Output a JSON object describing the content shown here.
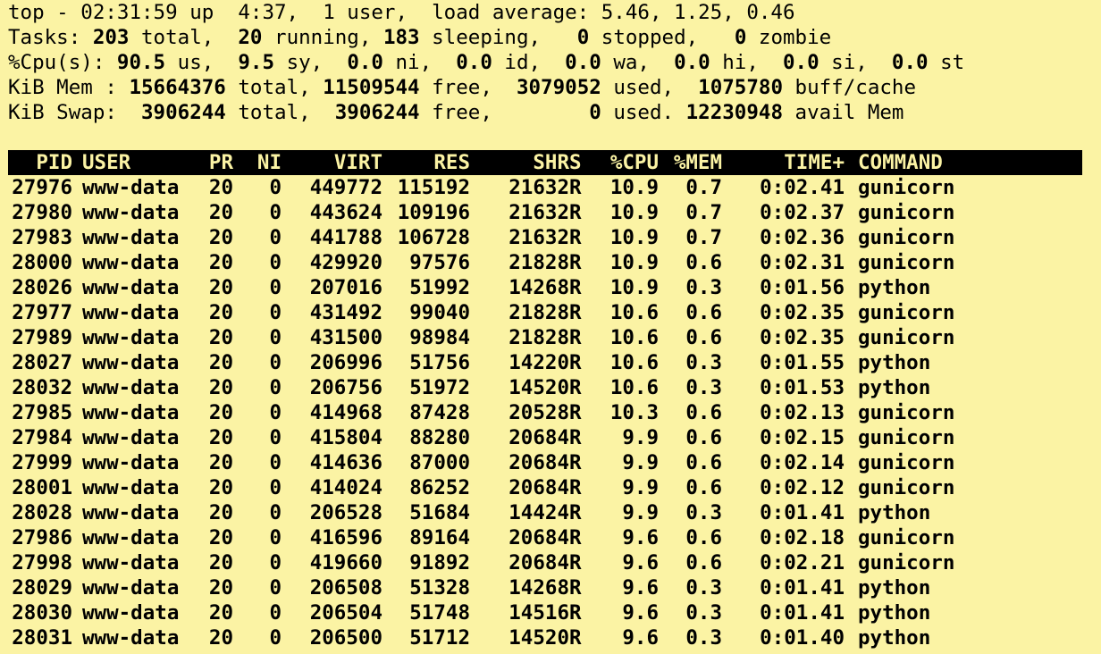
{
  "summary": {
    "l1": {
      "prefix": "top - 02:31:59 up  4:37,  1 user,  load average: 5.46, 1.25, 0.46"
    },
    "l2": {
      "label": "Tasks: ",
      "total_val": "203",
      "total_lbl": " total,  ",
      "running_val": "20",
      "running_lbl": " running, ",
      "sleeping_val": "183",
      "sleeping_lbl": " sleeping,   ",
      "stopped_val": "0",
      "stopped_lbl": " stopped,   ",
      "zombie_val": "0",
      "zombie_lbl": " zombie"
    },
    "l3": {
      "label": "%Cpu(s): ",
      "us_val": "90.5",
      "us_lbl": " us,  ",
      "sy_val": "9.5",
      "sy_lbl": " sy,  ",
      "ni_val": "0.0",
      "ni_lbl": " ni,  ",
      "id_val": "0.0",
      "id_lbl": " id,  ",
      "wa_val": "0.0",
      "wa_lbl": " wa,  ",
      "hi_val": "0.0",
      "hi_lbl": " hi,  ",
      "si_val": "0.0",
      "si_lbl": " si,  ",
      "st_val": "0.0",
      "st_lbl": " st"
    },
    "l4": {
      "label": "KiB Mem : ",
      "total_val": "15664376",
      "total_lbl": " total, ",
      "free_val": "11509544",
      "free_lbl": " free,  ",
      "used_val": "3079052",
      "used_lbl": " used,  ",
      "buff_val": "1075780",
      "buff_lbl": " buff/cache"
    },
    "l5": {
      "label": "KiB Swap:  ",
      "total_val": "3906244",
      "total_lbl": " total,  ",
      "free_val": "3906244",
      "free_lbl": " free,        ",
      "used_val": "0",
      "used_lbl": " used. ",
      "avail_val": "12230948",
      "avail_lbl": " avail Mem"
    }
  },
  "columns": {
    "pid": "PID",
    "user": "USER",
    "pr": "PR",
    "ni": "NI",
    "virt": "VIRT",
    "res": "RES",
    "shr": "SHR",
    "s": "S",
    "cpu": "%CPU",
    "mem": "%MEM",
    "time": "TIME+",
    "command": "COMMAND"
  },
  "processes": [
    {
      "pid": "27976",
      "user": "www-data",
      "pr": "20",
      "ni": "0",
      "virt": "449772",
      "res": "115192",
      "shr": "21632",
      "s": "R",
      "cpu": "10.9",
      "mem": "0.7",
      "time": "0:02.41",
      "command": "gunicorn"
    },
    {
      "pid": "27980",
      "user": "www-data",
      "pr": "20",
      "ni": "0",
      "virt": "443624",
      "res": "109196",
      "shr": "21632",
      "s": "R",
      "cpu": "10.9",
      "mem": "0.7",
      "time": "0:02.37",
      "command": "gunicorn"
    },
    {
      "pid": "27983",
      "user": "www-data",
      "pr": "20",
      "ni": "0",
      "virt": "441788",
      "res": "106728",
      "shr": "21632",
      "s": "R",
      "cpu": "10.9",
      "mem": "0.7",
      "time": "0:02.36",
      "command": "gunicorn"
    },
    {
      "pid": "28000",
      "user": "www-data",
      "pr": "20",
      "ni": "0",
      "virt": "429920",
      "res": "97576",
      "shr": "21828",
      "s": "R",
      "cpu": "10.9",
      "mem": "0.6",
      "time": "0:02.31",
      "command": "gunicorn"
    },
    {
      "pid": "28026",
      "user": "www-data",
      "pr": "20",
      "ni": "0",
      "virt": "207016",
      "res": "51992",
      "shr": "14268",
      "s": "R",
      "cpu": "10.9",
      "mem": "0.3",
      "time": "0:01.56",
      "command": "python"
    },
    {
      "pid": "27977",
      "user": "www-data",
      "pr": "20",
      "ni": "0",
      "virt": "431492",
      "res": "99040",
      "shr": "21828",
      "s": "R",
      "cpu": "10.6",
      "mem": "0.6",
      "time": "0:02.35",
      "command": "gunicorn"
    },
    {
      "pid": "27989",
      "user": "www-data",
      "pr": "20",
      "ni": "0",
      "virt": "431500",
      "res": "98984",
      "shr": "21828",
      "s": "R",
      "cpu": "10.6",
      "mem": "0.6",
      "time": "0:02.35",
      "command": "gunicorn"
    },
    {
      "pid": "28027",
      "user": "www-data",
      "pr": "20",
      "ni": "0",
      "virt": "206996",
      "res": "51756",
      "shr": "14220",
      "s": "R",
      "cpu": "10.6",
      "mem": "0.3",
      "time": "0:01.55",
      "command": "python"
    },
    {
      "pid": "28032",
      "user": "www-data",
      "pr": "20",
      "ni": "0",
      "virt": "206756",
      "res": "51972",
      "shr": "14520",
      "s": "R",
      "cpu": "10.6",
      "mem": "0.3",
      "time": "0:01.53",
      "command": "python"
    },
    {
      "pid": "27985",
      "user": "www-data",
      "pr": "20",
      "ni": "0",
      "virt": "414968",
      "res": "87428",
      "shr": "20528",
      "s": "R",
      "cpu": "10.3",
      "mem": "0.6",
      "time": "0:02.13",
      "command": "gunicorn"
    },
    {
      "pid": "27984",
      "user": "www-data",
      "pr": "20",
      "ni": "0",
      "virt": "415804",
      "res": "88280",
      "shr": "20684",
      "s": "R",
      "cpu": "9.9",
      "mem": "0.6",
      "time": "0:02.15",
      "command": "gunicorn"
    },
    {
      "pid": "27999",
      "user": "www-data",
      "pr": "20",
      "ni": "0",
      "virt": "414636",
      "res": "87000",
      "shr": "20684",
      "s": "R",
      "cpu": "9.9",
      "mem": "0.6",
      "time": "0:02.14",
      "command": "gunicorn"
    },
    {
      "pid": "28001",
      "user": "www-data",
      "pr": "20",
      "ni": "0",
      "virt": "414024",
      "res": "86252",
      "shr": "20684",
      "s": "R",
      "cpu": "9.9",
      "mem": "0.6",
      "time": "0:02.12",
      "command": "gunicorn"
    },
    {
      "pid": "28028",
      "user": "www-data",
      "pr": "20",
      "ni": "0",
      "virt": "206528",
      "res": "51684",
      "shr": "14424",
      "s": "R",
      "cpu": "9.9",
      "mem": "0.3",
      "time": "0:01.41",
      "command": "python"
    },
    {
      "pid": "27986",
      "user": "www-data",
      "pr": "20",
      "ni": "0",
      "virt": "416596",
      "res": "89164",
      "shr": "20684",
      "s": "R",
      "cpu": "9.6",
      "mem": "0.6",
      "time": "0:02.18",
      "command": "gunicorn"
    },
    {
      "pid": "27998",
      "user": "www-data",
      "pr": "20",
      "ni": "0",
      "virt": "419660",
      "res": "91892",
      "shr": "20684",
      "s": "R",
      "cpu": "9.6",
      "mem": "0.6",
      "time": "0:02.21",
      "command": "gunicorn"
    },
    {
      "pid": "28029",
      "user": "www-data",
      "pr": "20",
      "ni": "0",
      "virt": "206508",
      "res": "51328",
      "shr": "14268",
      "s": "R",
      "cpu": "9.6",
      "mem": "0.3",
      "time": "0:01.41",
      "command": "python"
    },
    {
      "pid": "28030",
      "user": "www-data",
      "pr": "20",
      "ni": "0",
      "virt": "206504",
      "res": "51748",
      "shr": "14516",
      "s": "R",
      "cpu": "9.6",
      "mem": "0.3",
      "time": "0:01.41",
      "command": "python"
    },
    {
      "pid": "28031",
      "user": "www-data",
      "pr": "20",
      "ni": "0",
      "virt": "206500",
      "res": "51712",
      "shr": "14520",
      "s": "R",
      "cpu": "9.6",
      "mem": "0.3",
      "time": "0:01.40",
      "command": "python"
    }
  ],
  "colors": {
    "background": "#fbf3a4",
    "text": "#000000",
    "header_background": "#000000",
    "header_text": "#fbf3a4"
  }
}
